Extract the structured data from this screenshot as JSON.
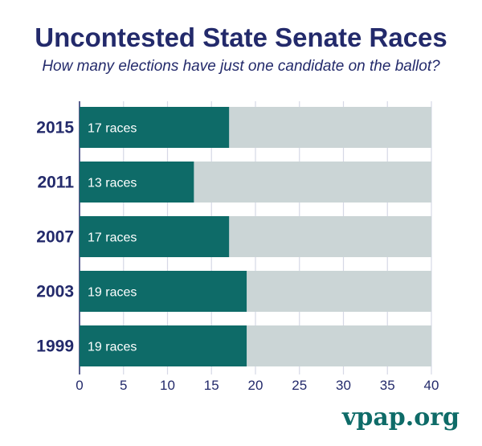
{
  "chart_data": {
    "type": "bar",
    "orientation": "horizontal",
    "title": "Uncontested State Senate Races",
    "subtitle": "How many elections have just one candidate on the ballot?",
    "categories": [
      "2015",
      "2011",
      "2007",
      "2003",
      "1999"
    ],
    "values": [
      17,
      13,
      17,
      19,
      19
    ],
    "data_labels": [
      "17 races",
      "13 races",
      "17 races",
      "19 races",
      "19 races"
    ],
    "background_max": 40,
    "xlim": [
      0,
      40
    ],
    "xticks": [
      0,
      5,
      10,
      15,
      20,
      25,
      30,
      35,
      40
    ],
    "grid": true,
    "colors": {
      "bar": "#0e6b68",
      "background_bar": "#cbd5d6",
      "text": "#232a6b",
      "grid": "#d6d8e6"
    }
  },
  "logo": "vpap.org"
}
